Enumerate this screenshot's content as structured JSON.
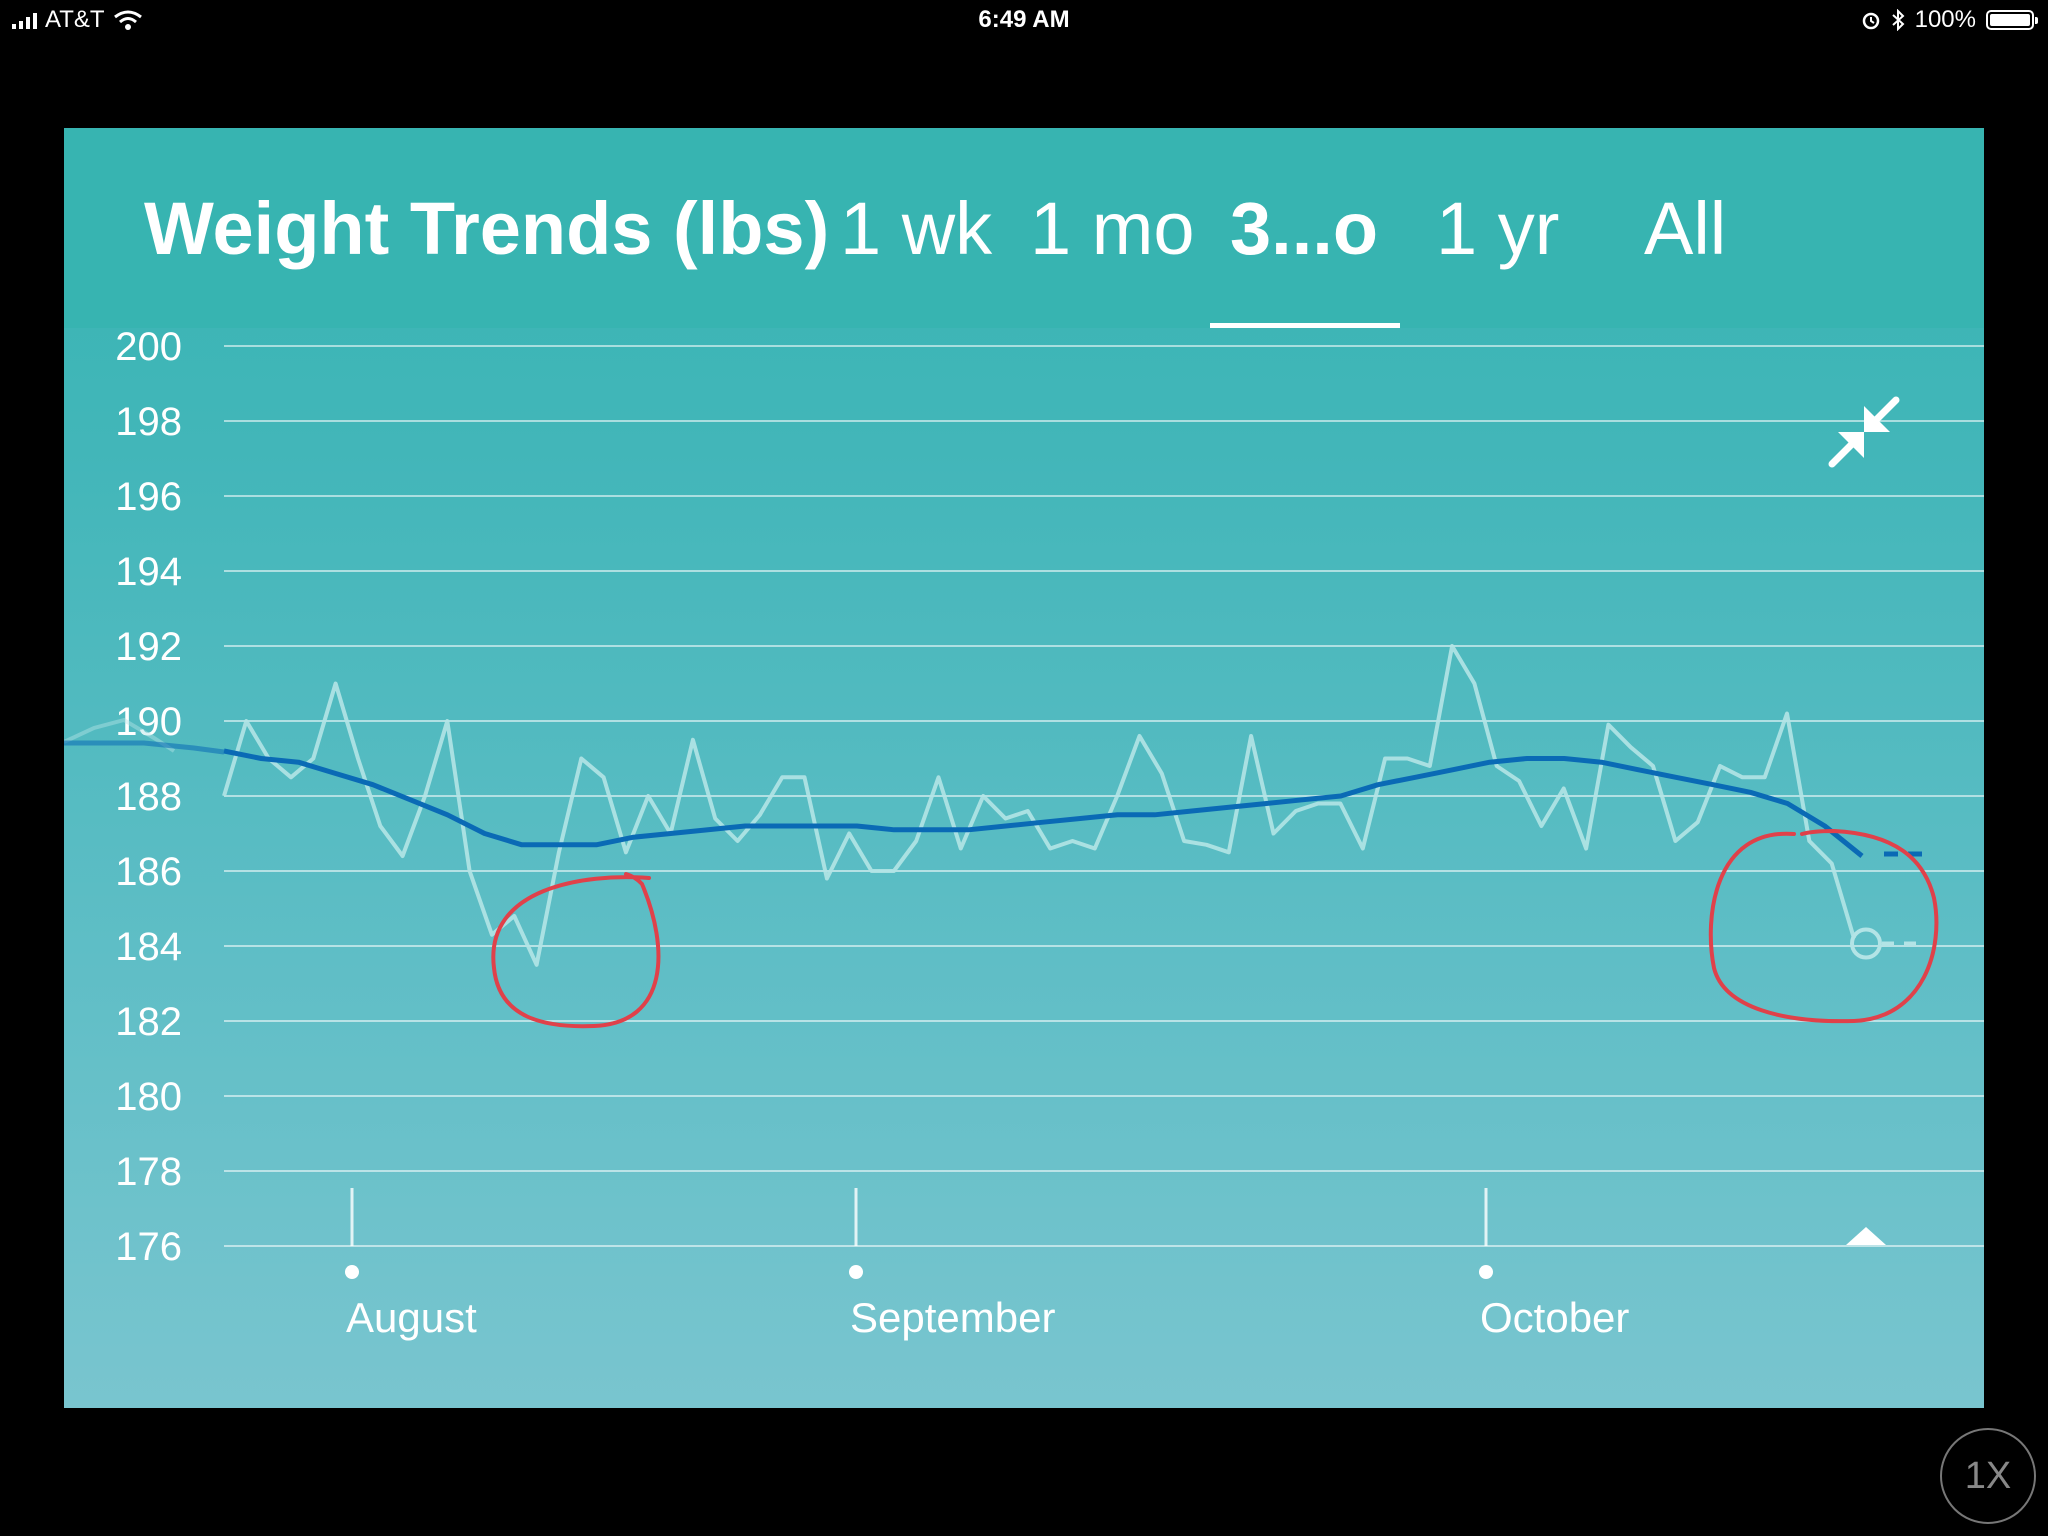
{
  "status_bar": {
    "carrier": "AT&T",
    "time": "6:49 AM",
    "battery": "100%"
  },
  "header": {
    "title": "Weight Trends (lbs)",
    "tabs": [
      {
        "label": "1 wk",
        "active": false
      },
      {
        "label": "1 mo",
        "active": false
      },
      {
        "label": "3...o",
        "active": true
      },
      {
        "label": "1 yr",
        "active": false
      },
      {
        "label": "All",
        "active": false
      }
    ]
  },
  "icons": {
    "collapse": "collapse-arrows-icon",
    "signal": "cellular-signal-icon",
    "wifi": "wifi-icon",
    "alarm": "alarm-icon",
    "bluetooth": "bluetooth-icon",
    "battery": "battery-icon"
  },
  "zoom_button": {
    "label": "1X"
  },
  "chart_data": {
    "type": "line",
    "title": "Weight Trends (lbs)",
    "xlabel": "",
    "ylabel": "",
    "ylim": [
      176,
      200
    ],
    "yticks": [
      200,
      198,
      196,
      194,
      192,
      190,
      188,
      186,
      184,
      182,
      180,
      178,
      176
    ],
    "month_labels": [
      "August",
      "September",
      "October"
    ],
    "grid": true,
    "colors": {
      "daily": "#b3e4e6",
      "trend": "#0a6ab5",
      "annotation": "#e0414a"
    },
    "series": [
      {
        "values": [
          188.0,
          190.0,
          189.0,
          188.5,
          189.0,
          191.0,
          189.0,
          187.2,
          186.4,
          188.0,
          190.0,
          186.0,
          184.3,
          184.8,
          183.5,
          186.5,
          189.0,
          188.5,
          186.5,
          188.0,
          187.0,
          189.5,
          187.4,
          186.8,
          187.5,
          188.5,
          188.5,
          185.8,
          187.0,
          186.0,
          186.0,
          186.8,
          188.5,
          186.6,
          188.0,
          187.4,
          187.6,
          186.6,
          186.8,
          186.6,
          188.0,
          189.6,
          188.6,
          186.8,
          186.7,
          186.5,
          189.6,
          187.0,
          187.6,
          187.8,
          187.8,
          186.6,
          189.0,
          189.0,
          188.8,
          192.0,
          191.0,
          188.8,
          188.4,
          187.2,
          188.2,
          186.6,
          189.9,
          189.3,
          188.8,
          186.8,
          187.3,
          188.8,
          188.5,
          188.5,
          190.2,
          186.8,
          186.2,
          184.2
        ]
      },
      {
        "values": [
          189.2,
          189.0,
          188.9,
          188.6,
          188.3,
          187.9,
          187.5,
          187.0,
          186.7,
          186.7,
          186.7,
          186.9,
          187.0,
          187.1,
          187.2,
          187.2,
          187.2,
          187.2,
          187.1,
          187.1,
          187.1,
          187.2,
          187.3,
          187.4,
          187.5,
          187.5,
          187.6,
          187.7,
          187.8,
          187.9,
          188.0,
          188.3,
          188.5,
          188.7,
          188.9,
          189.0,
          189.0,
          188.9,
          188.7,
          188.5,
          188.3,
          188.1,
          187.8,
          187.2,
          186.4
        ]
      }
    ]
  }
}
